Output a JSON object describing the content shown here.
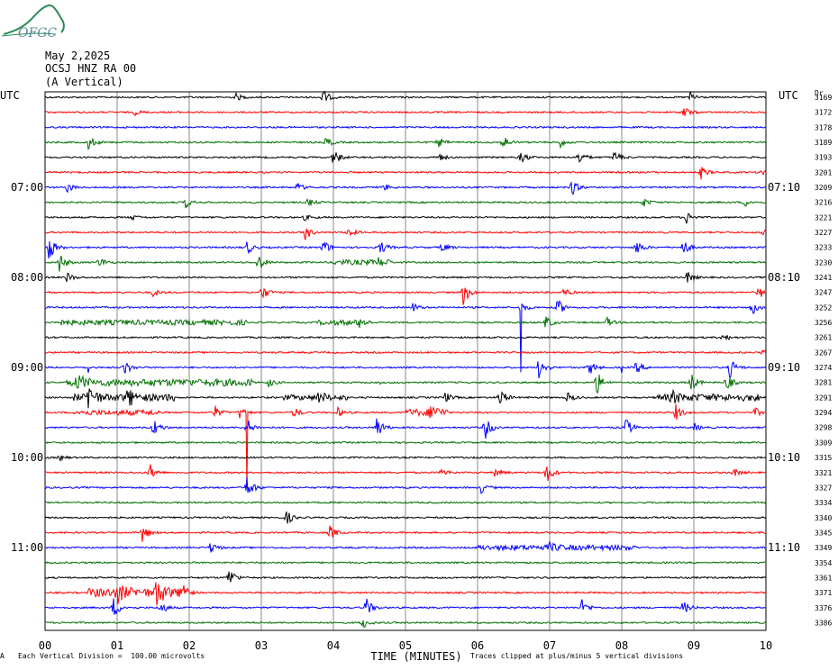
{
  "logo": {
    "text": "OFGC",
    "color": "#2e8b57"
  },
  "header": {
    "date": "May 2,2025",
    "station": "OCSJ HNZ RA 00",
    "component": "(A Vertical)"
  },
  "footer": {
    "scale_note": "Each Vertical Division =  100.00 microvolts",
    "clip_note": "Traces clipped at plus/minus 5 vertical divisions",
    "corner_mark": "A"
  },
  "chart_data": {
    "type": "line",
    "title": "",
    "xlabel": "TIME (MINUTES)",
    "ylabel_left": "UTC",
    "ylabel_right": "UTC",
    "right_col_header": "Dr",
    "xlim": [
      0,
      10
    ],
    "x_ticks": [
      "00",
      "01",
      "02",
      "03",
      "04",
      "05",
      "06",
      "07",
      "08",
      "09",
      "10"
    ],
    "grid": true,
    "trace_colors": [
      "#000000",
      "#ff0000",
      "#0000ff",
      "#007000"
    ],
    "left_time_labels": [
      {
        "row": 6,
        "label": "07:00"
      },
      {
        "row": 12,
        "label": "08:00"
      },
      {
        "row": 18,
        "label": "09:00"
      },
      {
        "row": 24,
        "label": "10:00"
      },
      {
        "row": 30,
        "label": "11:00"
      }
    ],
    "right_time_labels": [
      {
        "row": 6,
        "label": "07:10"
      },
      {
        "row": 12,
        "label": "08:10"
      },
      {
        "row": 18,
        "label": "09:10"
      },
      {
        "row": 24,
        "label": "10:10"
      },
      {
        "row": 30,
        "label": "11:10"
      }
    ],
    "right_values": [
      "3169",
      "3172",
      "3178",
      "3189",
      "3193",
      "3201",
      "3209",
      "3216",
      "3221",
      "3227",
      "3233",
      "3230",
      "3241",
      "3247",
      "3252",
      "3256",
      "3261",
      "3267",
      "3274",
      "3281",
      "3291",
      "3294",
      "3298",
      "3309",
      "3315",
      "3321",
      "3327",
      "3334",
      "3340",
      "3345",
      "3349",
      "3354",
      "3361",
      "3371",
      "3376",
      "3386"
    ],
    "events": [
      {
        "row": 0,
        "t": 2.65,
        "a": 4
      },
      {
        "row": 0,
        "t": 3.85,
        "a": 9
      },
      {
        "row": 0,
        "t": 8.95,
        "a": 6
      },
      {
        "row": 1,
        "t": 1.25,
        "a": 3
      },
      {
        "row": 1,
        "t": 8.85,
        "a": 8
      },
      {
        "row": 3,
        "t": 0.6,
        "a": 9
      },
      {
        "row": 3,
        "t": 3.9,
        "a": 6
      },
      {
        "row": 3,
        "t": 5.45,
        "a": 6
      },
      {
        "row": 3,
        "t": 6.35,
        "a": 9
      },
      {
        "row": 3,
        "t": 7.15,
        "a": 5
      },
      {
        "row": 4,
        "t": 4.0,
        "a": 10
      },
      {
        "row": 4,
        "t": 5.45,
        "a": 6
      },
      {
        "row": 4,
        "t": 6.6,
        "a": 7
      },
      {
        "row": 4,
        "t": 7.4,
        "a": 9
      },
      {
        "row": 4,
        "t": 7.9,
        "a": 8
      },
      {
        "row": 5,
        "t": 9.1,
        "a": 7
      },
      {
        "row": 5,
        "t": 9.95,
        "a": 5
      },
      {
        "row": 6,
        "t": 0.3,
        "a": 6
      },
      {
        "row": 6,
        "t": 3.5,
        "a": 5
      },
      {
        "row": 6,
        "t": 4.7,
        "a": 4
      },
      {
        "row": 6,
        "t": 7.3,
        "a": 10
      },
      {
        "row": 7,
        "t": 1.95,
        "a": 6
      },
      {
        "row": 7,
        "t": 3.65,
        "a": 5
      },
      {
        "row": 7,
        "t": 8.3,
        "a": 5
      },
      {
        "row": 7,
        "t": 9.7,
        "a": 5
      },
      {
        "row": 8,
        "t": 1.2,
        "a": 3
      },
      {
        "row": 8,
        "t": 3.6,
        "a": 3
      },
      {
        "row": 8,
        "t": 8.9,
        "a": 7
      },
      {
        "row": 9,
        "t": 3.6,
        "a": 10
      },
      {
        "row": 9,
        "t": 4.2,
        "a": 6
      },
      {
        "row": 9,
        "t": 9.95,
        "a": 9
      },
      {
        "row": 10,
        "t": 0.05,
        "a": 16
      },
      {
        "row": 10,
        "t": 2.8,
        "a": 8
      },
      {
        "row": 10,
        "t": 3.85,
        "a": 10
      },
      {
        "row": 10,
        "t": 4.65,
        "a": 8
      },
      {
        "row": 10,
        "t": 5.5,
        "a": 6
      },
      {
        "row": 10,
        "t": 8.2,
        "a": 9
      },
      {
        "row": 10,
        "t": 8.85,
        "a": 10
      },
      {
        "row": 11,
        "t": 0.2,
        "a": 11
      },
      {
        "row": 11,
        "t": 0.75,
        "a": 7
      },
      {
        "row": 11,
        "t": 2.95,
        "a": 11
      },
      {
        "row": 11,
        "t": 4.6,
        "a": 5
      },
      {
        "row": 12,
        "t": 0.3,
        "a": 6
      },
      {
        "row": 12,
        "t": 8.9,
        "a": 7
      },
      {
        "row": 13,
        "t": 1.5,
        "a": 4
      },
      {
        "row": 13,
        "t": 3.0,
        "a": 10
      },
      {
        "row": 13,
        "t": 5.8,
        "a": 14
      },
      {
        "row": 13,
        "t": 7.2,
        "a": 5
      },
      {
        "row": 13,
        "t": 9.9,
        "a": 8
      },
      {
        "row": 14,
        "t": 5.1,
        "a": 5
      },
      {
        "row": 14,
        "t": 6.6,
        "a": 6
      },
      {
        "row": 14,
        "t": 7.1,
        "a": 11
      },
      {
        "row": 14,
        "t": 9.8,
        "a": 9
      },
      {
        "row": 15,
        "t": 4.35,
        "a": 4
      },
      {
        "row": 15,
        "t": 6.95,
        "a": 8
      },
      {
        "row": 15,
        "t": 7.8,
        "a": 5
      },
      {
        "row": 16,
        "t": 9.4,
        "a": 5
      },
      {
        "row": 17,
        "t": 9.95,
        "a": 3
      },
      {
        "row": 18,
        "t": 1.1,
        "a": 9
      },
      {
        "row": 18,
        "t": 6.85,
        "a": 12
      },
      {
        "row": 18,
        "t": 7.55,
        "a": 9
      },
      {
        "row": 18,
        "t": 8.2,
        "a": 7
      },
      {
        "row": 18,
        "t": 9.5,
        "a": 11
      },
      {
        "row": 19,
        "t": 0.45,
        "a": 9
      },
      {
        "row": 19,
        "t": 3.1,
        "a": 5
      },
      {
        "row": 19,
        "t": 7.65,
        "a": 14
      },
      {
        "row": 19,
        "t": 8.95,
        "a": 12
      },
      {
        "row": 19,
        "t": 9.45,
        "a": 10
      },
      {
        "row": 20,
        "t": 0.6,
        "a": 16
      },
      {
        "row": 20,
        "t": 1.15,
        "a": 10
      },
      {
        "row": 20,
        "t": 3.8,
        "a": 6
      },
      {
        "row": 20,
        "t": 5.55,
        "a": 6
      },
      {
        "row": 20,
        "t": 6.3,
        "a": 12
      },
      {
        "row": 20,
        "t": 7.25,
        "a": 6
      },
      {
        "row": 20,
        "t": 8.7,
        "a": 6
      },
      {
        "row": 21,
        "t": 2.35,
        "a": 8
      },
      {
        "row": 21,
        "t": 2.7,
        "a": 7
      },
      {
        "row": 21,
        "t": 3.45,
        "a": 6
      },
      {
        "row": 21,
        "t": 4.05,
        "a": 6
      },
      {
        "row": 21,
        "t": 5.35,
        "a": 8
      },
      {
        "row": 21,
        "t": 8.75,
        "a": 9
      },
      {
        "row": 21,
        "t": 9.85,
        "a": 5
      },
      {
        "row": 22,
        "t": 1.5,
        "a": 11
      },
      {
        "row": 22,
        "t": 2.8,
        "a": 10
      },
      {
        "row": 22,
        "t": 4.6,
        "a": 13
      },
      {
        "row": 22,
        "t": 6.1,
        "a": 14
      },
      {
        "row": 22,
        "t": 8.05,
        "a": 12
      },
      {
        "row": 22,
        "t": 9.0,
        "a": 5
      },
      {
        "row": 24,
        "t": 0.2,
        "a": 3
      },
      {
        "row": 25,
        "t": 1.45,
        "a": 10
      },
      {
        "row": 25,
        "t": 5.5,
        "a": 5
      },
      {
        "row": 25,
        "t": 6.25,
        "a": 6
      },
      {
        "row": 25,
        "t": 6.95,
        "a": 13
      },
      {
        "row": 25,
        "t": 9.55,
        "a": 5
      },
      {
        "row": 26,
        "t": 2.8,
        "a": 14
      },
      {
        "row": 26,
        "t": 6.05,
        "a": 6
      },
      {
        "row": 28,
        "t": 3.35,
        "a": 8
      },
      {
        "row": 29,
        "t": 1.35,
        "a": 11
      },
      {
        "row": 29,
        "t": 3.95,
        "a": 8
      },
      {
        "row": 30,
        "t": 2.3,
        "a": 7
      },
      {
        "row": 30,
        "t": 7.0,
        "a": 4
      },
      {
        "row": 32,
        "t": 2.55,
        "a": 12
      },
      {
        "row": 33,
        "t": 1.55,
        "a": 16
      },
      {
        "row": 33,
        "t": 1.0,
        "a": 10
      },
      {
        "row": 33,
        "t": 1.9,
        "a": 10
      },
      {
        "row": 34,
        "t": 0.95,
        "a": 12
      },
      {
        "row": 34,
        "t": 1.6,
        "a": 8
      },
      {
        "row": 34,
        "t": 4.45,
        "a": 11
      },
      {
        "row": 34,
        "t": 7.45,
        "a": 9
      },
      {
        "row": 34,
        "t": 8.85,
        "a": 8
      },
      {
        "row": 35,
        "t": 4.4,
        "a": 7
      }
    ],
    "tremor": [
      {
        "row": 11,
        "t0": 4.0,
        "t1": 4.8,
        "a": 2
      },
      {
        "row": 15,
        "t0": 0.1,
        "t1": 2.8,
        "a": 2
      },
      {
        "row": 15,
        "t0": 3.8,
        "t1": 4.5,
        "a": 2
      },
      {
        "row": 19,
        "t0": 0.3,
        "t1": 2.9,
        "a": 3
      },
      {
        "row": 20,
        "t0": 0.4,
        "t1": 1.8,
        "a": 3
      },
      {
        "row": 20,
        "t0": 3.3,
        "t1": 4.2,
        "a": 2
      },
      {
        "row": 20,
        "t0": 8.5,
        "t1": 9.9,
        "a": 3
      },
      {
        "row": 21,
        "t0": 0.4,
        "t1": 1.6,
        "a": 2
      },
      {
        "row": 21,
        "t0": 5.0,
        "t1": 5.6,
        "a": 3
      },
      {
        "row": 30,
        "t0": 6.0,
        "t1": 8.2,
        "a": 2
      },
      {
        "row": 33,
        "t0": 0.6,
        "t1": 2.0,
        "a": 4
      }
    ],
    "spikes": [
      {
        "row": 18,
        "t": 0.6,
        "up": 36,
        "down": 6
      },
      {
        "row": 18,
        "t": 1.1,
        "up": 30,
        "down": 4
      },
      {
        "row": 21,
        "t": 2.8,
        "up": 0,
        "down": 84
      },
      {
        "row": 15,
        "t": 6.6,
        "up": 0,
        "down": 0
      },
      {
        "row": 14,
        "t": 6.6,
        "up": 0,
        "down": 72
      },
      {
        "row": 18,
        "t": 8.0,
        "up": 32,
        "down": 6
      },
      {
        "row": 19,
        "t": 4.65,
        "up": 30,
        "down": 2
      }
    ]
  }
}
